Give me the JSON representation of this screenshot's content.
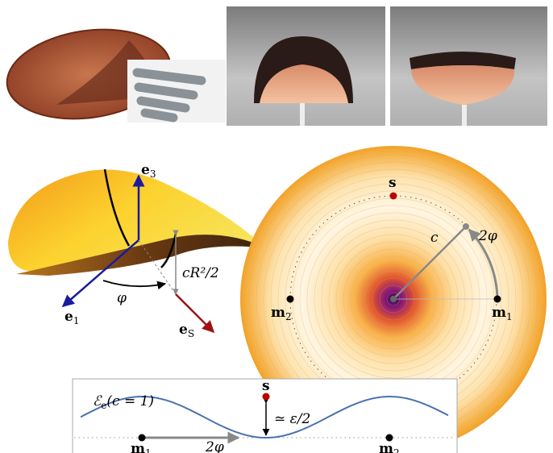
{
  "saddle": {
    "e3": {
      "base": "e",
      "sub": "3"
    },
    "e1": {
      "base": "e",
      "sub": "1"
    },
    "eS": {
      "base": "e",
      "sub": "S"
    },
    "angle": "φ",
    "height": "cR²/2"
  },
  "disk": {
    "s": "s",
    "c": "c",
    "angle": "2φ",
    "m2": {
      "base": "m",
      "sub": "2"
    },
    "m1": {
      "base": "m",
      "sub": "1"
    }
  },
  "energy_plot": {
    "label": {
      "base": "ℰ",
      "sub": "e",
      "rest": "(c = 1)"
    },
    "gap": "≃ ε/2",
    "s": "s",
    "m1": {
      "base": "m",
      "sub": "1"
    },
    "shift": "2φ",
    "m2": {
      "base": "m",
      "sub": "2"
    }
  }
}
